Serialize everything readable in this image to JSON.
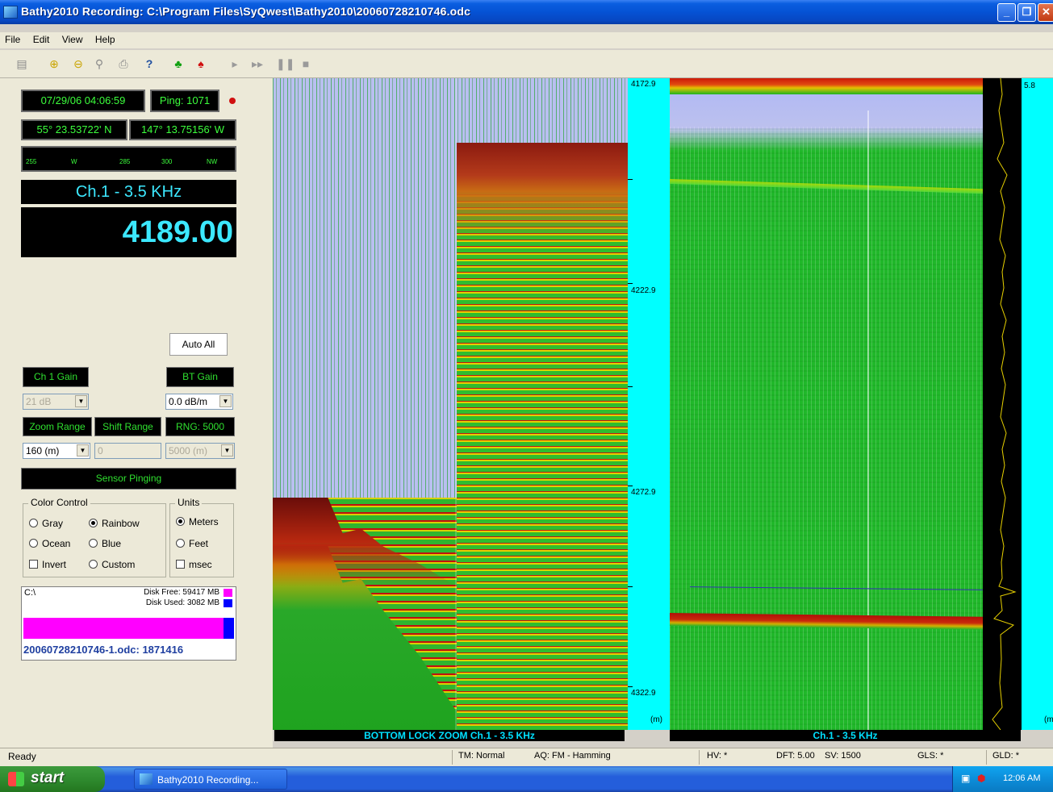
{
  "window": {
    "title": "Bathy2010 Recording: C:\\Program Files\\SyQwest\\Bathy2010\\20060728210746.odc"
  },
  "menu": [
    "File",
    "Edit",
    "View",
    "Help"
  ],
  "toolbar_icons": [
    "open-icon",
    "zoom-in-icon",
    "zoom-out-icon",
    "find-icon",
    "print-icon",
    "help-icon",
    "green-sensor-icon",
    "red-sensor-icon",
    "play-icon",
    "fast-forward-icon",
    "pause-icon",
    "stop-icon"
  ],
  "left": {
    "datetime": "07/29/06 04:06:59",
    "ping": "Ping: 1071",
    "lat": "55° 23.53722' N",
    "lon": "147° 13.75156' W",
    "compass_ticks": [
      "255",
      "W",
      "285",
      "300",
      "NW"
    ],
    "channel": "Ch.1 - 3.5 KHz",
    "depth": "4189.00",
    "auto_all": "Auto All",
    "ch1_gain": "Ch 1 Gain",
    "bt_gain": "BT Gain",
    "ch1_gain_value": "21 dB",
    "bt_gain_value": "0.0 dB/m",
    "zoom_range": "Zoom Range",
    "shift_range": "Shift Range",
    "rng": "RNG: 5000",
    "zoom_value": "160 (m)",
    "shift_value": "0",
    "rng_value": "5000 (m)",
    "sensor_pinging": "Sensor Pinging",
    "color_control": "Color Control",
    "colors": [
      "Gray",
      "Rainbow",
      "Ocean",
      "Blue",
      "Invert",
      "Custom"
    ],
    "units": "Units",
    "unit_options": [
      "Meters",
      "Feet",
      "msec"
    ],
    "drive": "C:\\",
    "disk_free": "Disk Free: 59417 MB",
    "disk_used": "Disk Used: 3082 MB",
    "disk_free_color": "#ff00ff",
    "disk_used_color": "#0000ff",
    "file": "20060728210746-1.odc: 1871416"
  },
  "scale1": {
    "labels": [
      "4172.9",
      "4222.9",
      "4272.9",
      "4322.9"
    ],
    "unit": "(m)"
  },
  "scale2": {
    "top": "5.8",
    "unit": "(m"
  },
  "captions": {
    "zoom": "BOTTOM LOCK ZOOM Ch.1 - 3.5 KHz",
    "main": "Ch.1 - 3.5 KHz"
  },
  "status": {
    "ready": "Ready",
    "tm": "TM: Normal",
    "aq": "AQ: FM - Hamming",
    "hv": "HV: *",
    "dft": "DFT: 5.00",
    "sv": "SV: 1500",
    "gls": "GLS: *",
    "gld": "GLD: *"
  },
  "taskbar": {
    "start": "start",
    "task": "Bathy2010 Recording...",
    "clock": "12:06 AM"
  }
}
